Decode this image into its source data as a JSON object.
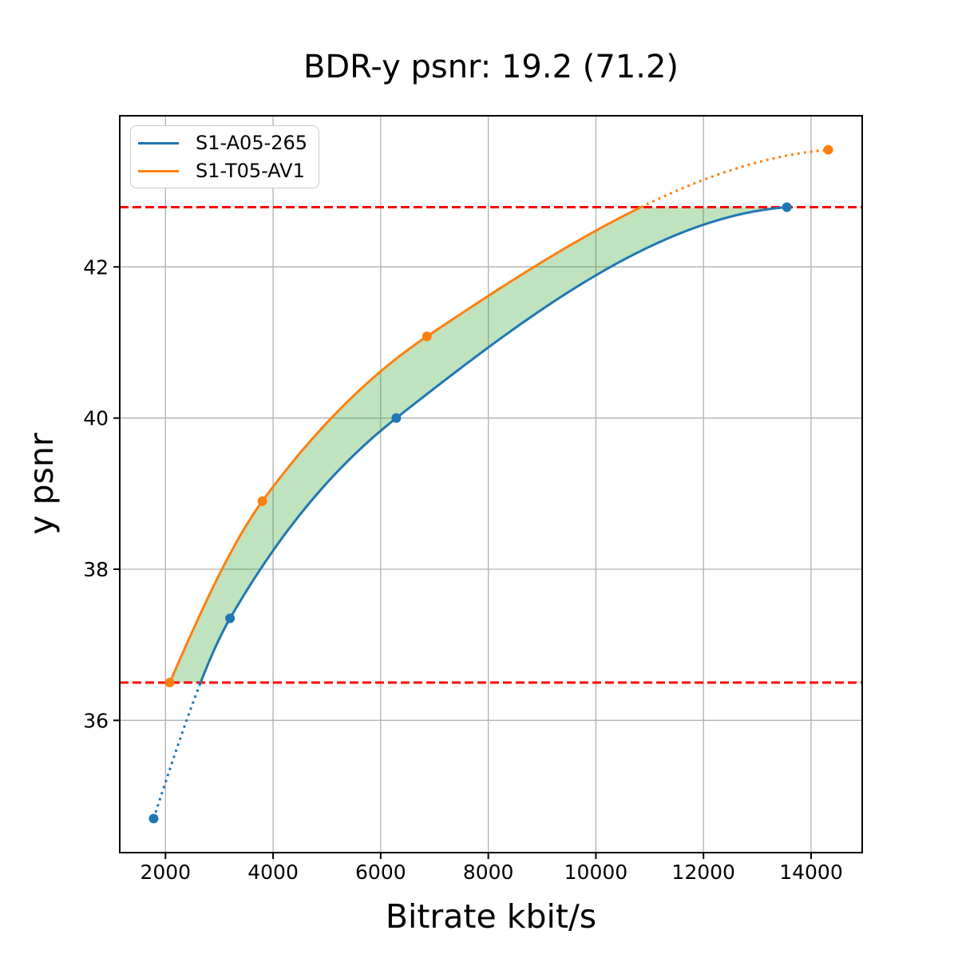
{
  "chart_data": {
    "type": "line",
    "title": "BDR-y psnr: 19.2 (71.2)",
    "xlabel": "Bitrate kbit/s",
    "ylabel": "y psnr",
    "xlim": [
      1150,
      14950
    ],
    "ylim": [
      34.25,
      44.0
    ],
    "xticks": [
      2000,
      4000,
      6000,
      8000,
      10000,
      12000,
      14000
    ],
    "yticks": [
      36,
      38,
      40,
      42
    ],
    "grid": true,
    "grid_color": "#b0b0b0",
    "legend_position": "upper-left",
    "series": [
      {
        "name": "S1-A05-265",
        "color": "#1f77b4",
        "x": [
          1780,
          3200,
          6290,
          13550
        ],
        "y": [
          34.7,
          37.35,
          40.0,
          42.79
        ]
      },
      {
        "name": "S1-T05-AV1",
        "color": "#ff7f0e",
        "x": [
          2080,
          3800,
          6860,
          14320
        ],
        "y": [
          36.5,
          38.9,
          41.08,
          43.55
        ]
      }
    ],
    "reference_lines": [
      {
        "y": 42.79,
        "color": "#ff0000",
        "style": "dashed"
      },
      {
        "y": 36.5,
        "color": "#ff0000",
        "style": "dashed"
      }
    ],
    "fill_between": {
      "color": "#2ca02c",
      "opacity": 0.3,
      "upper_series": "S1-T05-AV1",
      "lower_series": "S1-A05-265",
      "y_clip": [
        36.5,
        42.79
      ]
    },
    "interpolation": "pchip",
    "out_of_overlap_style": "dotted"
  }
}
